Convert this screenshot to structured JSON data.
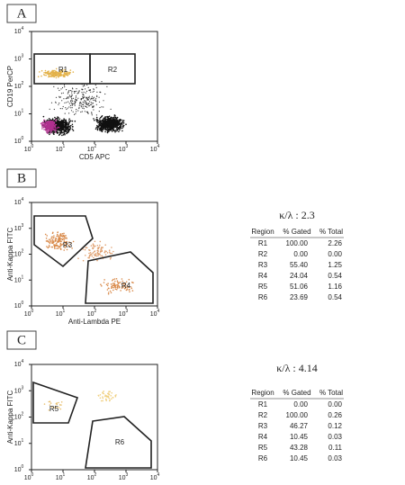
{
  "panels": [
    {
      "label": "A",
      "y_axis_label": "CD19 PerCP",
      "x_axis_label": "CD5 APC",
      "ticks": [
        {
          "base": "10",
          "exp": "0"
        },
        {
          "base": "10",
          "exp": "1"
        },
        {
          "base": "10",
          "exp": "2"
        },
        {
          "base": "10",
          "exp": "3"
        },
        {
          "base": "10",
          "exp": "4"
        }
      ],
      "regions": [
        "R1",
        "R2"
      ]
    },
    {
      "label": "B",
      "y_axis_label": "Anti-Kappa FITC",
      "x_axis_label": "Anti-Lambda PE",
      "ticks": [
        {
          "base": "10",
          "exp": "0"
        },
        {
          "base": "10",
          "exp": "1"
        },
        {
          "base": "10",
          "exp": "2"
        },
        {
          "base": "10",
          "exp": "3"
        },
        {
          "base": "10",
          "exp": "4"
        }
      ],
      "regions": [
        "R3",
        "R4"
      ],
      "kappa_lambda": "κ/λ : 2.3",
      "table": {
        "header": [
          "Region",
          "% Gated",
          "% Total"
        ],
        "rows": [
          [
            "R1",
            "100.00",
            "2.26"
          ],
          [
            "R2",
            "0.00",
            "0.00"
          ],
          [
            "R3",
            "55.40",
            "1.25"
          ],
          [
            "R4",
            "24.04",
            "0.54"
          ],
          [
            "R5",
            "51.06",
            "1.16"
          ],
          [
            "R6",
            "23.69",
            "0.54"
          ]
        ]
      }
    },
    {
      "label": "C",
      "y_axis_label": "Anti-Kappa FITC",
      "ticks": [
        {
          "base": "10",
          "exp": "0"
        },
        {
          "base": "10",
          "exp": "1"
        },
        {
          "base": "10",
          "exp": "2"
        },
        {
          "base": "10",
          "exp": "3"
        },
        {
          "base": "10",
          "exp": "4"
        }
      ],
      "regions": [
        "R5",
        "R6"
      ],
      "kappa_lambda": "κ/λ : 4.14",
      "table": {
        "header": [
          "Region",
          "% Gated",
          "% Total"
        ],
        "rows": [
          [
            "R1",
            "0.00",
            "0.00"
          ],
          [
            "R2",
            "100.00",
            "0.26"
          ],
          [
            "R3",
            "46.27",
            "0.12"
          ],
          [
            "R4",
            "10.45",
            "0.03"
          ],
          [
            "R5",
            "43.28",
            "0.11"
          ],
          [
            "R6",
            "10.45",
            "0.03"
          ]
        ]
      }
    }
  ]
}
